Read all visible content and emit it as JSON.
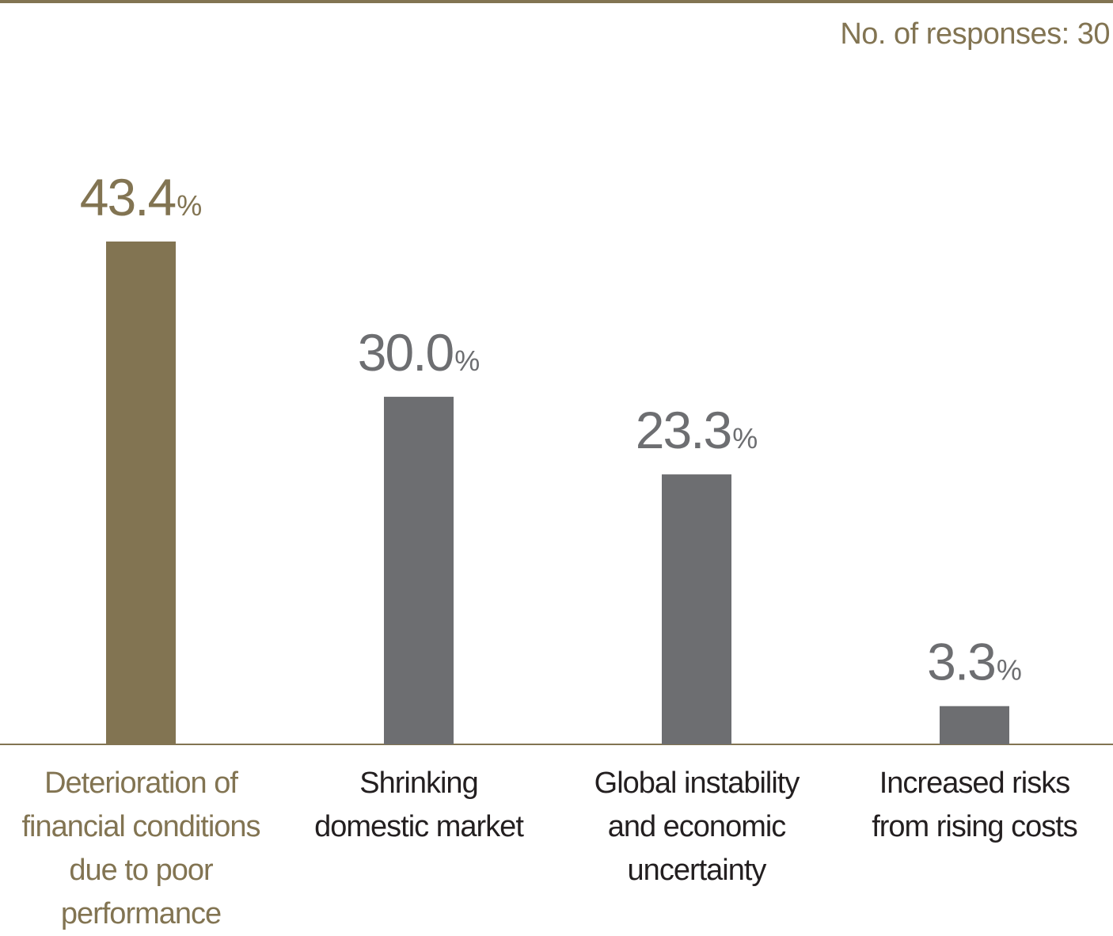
{
  "note": "No. of responses: 30",
  "colors": {
    "accent": "#827452",
    "bar_default": "#6d6e71",
    "value_default": "#6d6e71",
    "label_default": "#231f20",
    "rule": "#827452"
  },
  "chart_data": {
    "type": "bar",
    "categories": [
      [
        "Deterioration of",
        "financial conditions",
        "due to poor",
        "performance"
      ],
      [
        "Shrinking",
        "domestic market"
      ],
      [
        "Global instability",
        "and economic",
        "uncertainty"
      ],
      [
        "Increased risks",
        "from rising costs"
      ]
    ],
    "values": [
      43.4,
      30.0,
      23.3,
      3.3
    ],
    "value_labels": [
      "43.4",
      "30.0",
      "23.3",
      "3.3"
    ],
    "unit": "%",
    "highlight_index": 0,
    "ylim": [
      0,
      50
    ],
    "grid": false,
    "legend": "none"
  }
}
